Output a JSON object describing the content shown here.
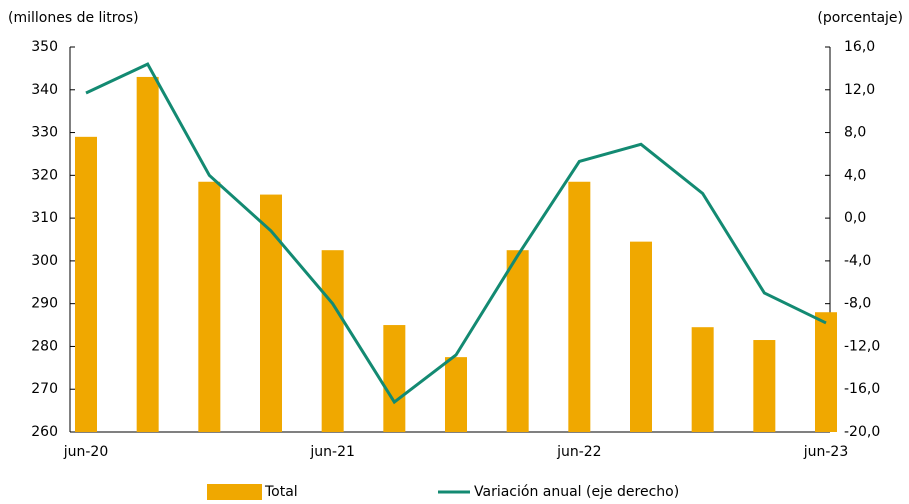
{
  "chart_data": {
    "type": "bar_line",
    "y_label": "(millones de litros)",
    "y2_label": "(porcentaje)",
    "categories": [
      "jun-20",
      null,
      null,
      null,
      "jun-21",
      null,
      null,
      null,
      "jun-22",
      null,
      null,
      null,
      "jun-23"
    ],
    "series": [
      {
        "name": "Total",
        "type": "bar",
        "color": "#f0a800",
        "values": [
          329,
          343,
          318.5,
          315.5,
          302.5,
          285,
          277.5,
          302.5,
          318.5,
          304.5,
          284.5,
          281.5,
          288
        ]
      },
      {
        "name": "Variación anual (eje derecho)",
        "type": "line",
        "axis": "y2",
        "color": "#138a72",
        "values": [
          11.7,
          14.4,
          4.0,
          -1.2,
          -8.0,
          -17.2,
          -12.8,
          -3.5,
          5.3,
          6.9,
          2.3,
          -7.0,
          -9.8
        ]
      }
    ],
    "ylim": [
      260,
      350
    ],
    "yticks": [
      260,
      270,
      280,
      290,
      300,
      310,
      320,
      330,
      340,
      350
    ],
    "y2lim": [
      -20,
      16
    ],
    "y2ticks": [
      {
        "value": -20,
        "label": "-20,0"
      },
      {
        "value": -16,
        "label": "-16,0"
      },
      {
        "value": -12,
        "label": "-12,0"
      },
      {
        "value": -8,
        "label": "-8,0"
      },
      {
        "value": -4,
        "label": "-4,0"
      },
      {
        "value": 0,
        "label": "0,0"
      },
      {
        "value": 4,
        "label": "4,0"
      },
      {
        "value": 8,
        "label": "8,0"
      },
      {
        "value": 12,
        "label": "12,0"
      },
      {
        "value": 16,
        "label": "16,0"
      }
    ],
    "grid": false
  }
}
